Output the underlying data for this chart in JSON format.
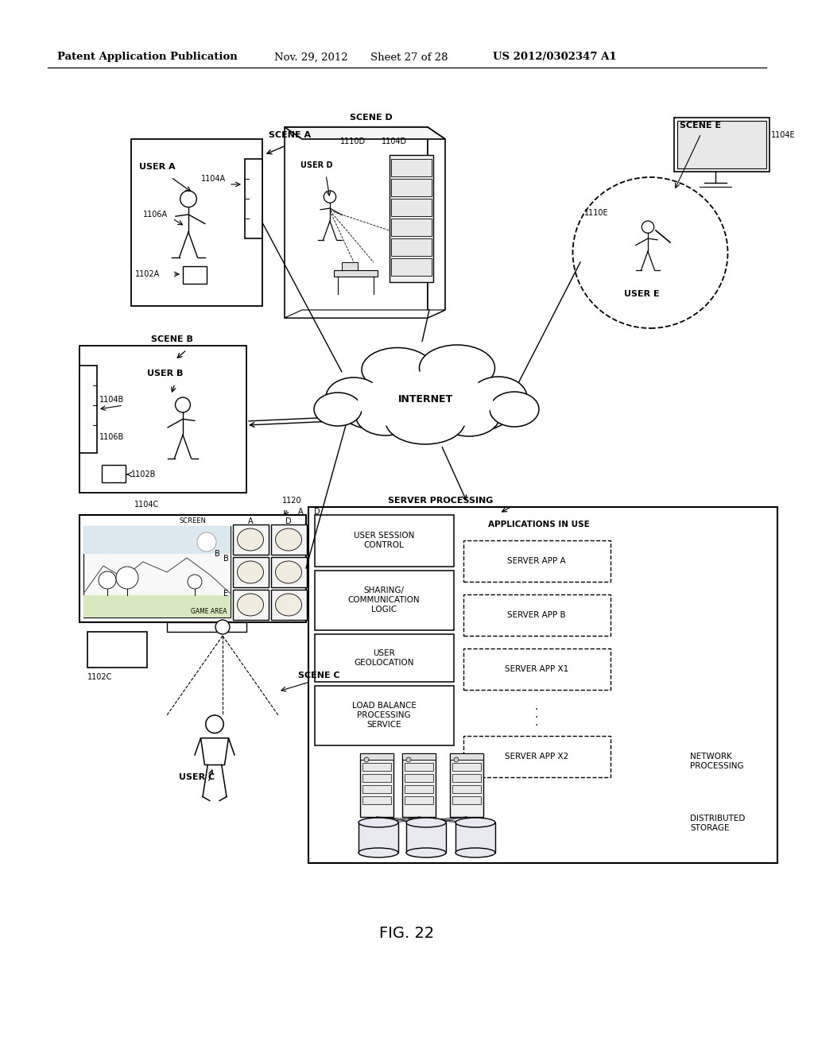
{
  "bg_color": "#ffffff",
  "header_text": "Patent Application Publication",
  "header_date": "Nov. 29, 2012",
  "header_sheet": "Sheet 27 of 28",
  "header_patent": "US 2012/0302347 A1",
  "fig_label": "FIG. 22",
  "lw_main": 1.2,
  "lw_dash": 1.0,
  "lw_thin": 0.8
}
